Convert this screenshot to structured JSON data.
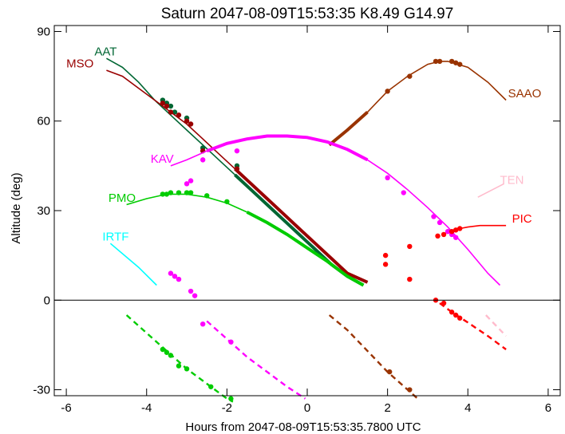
{
  "chart_data": {
    "type": "line",
    "title": "Saturn 2047-08-09T15:53:35  K8.49  G14.97",
    "xlabel": "Hours from 2047-08-09T15:53:35.7800 UTC",
    "ylabel": "Altitude (deg)",
    "xlim": [
      -6.3,
      6.3
    ],
    "ylim": [
      -32,
      92
    ],
    "xticks": [
      -6,
      -4,
      -2,
      0,
      2,
      4,
      6
    ],
    "yticks": [
      -30,
      0,
      30,
      60,
      90
    ],
    "zero_line": true,
    "series": [
      {
        "name": "AAT",
        "color": "#006633",
        "label_pos": [
          -5.3,
          82
        ],
        "x": [
          -5.0,
          -4.6,
          -4.2,
          -3.8,
          -3.4,
          -3.0,
          -2.6,
          -2.2,
          -1.8,
          -1.4,
          -1.0,
          -0.6,
          -0.2,
          0.2,
          0.6,
          1.0,
          1.4
        ],
        "y": [
          81,
          78,
          73,
          67,
          62,
          57,
          52,
          47,
          42,
          37,
          32,
          27,
          22,
          17,
          12,
          8,
          5
        ],
        "thick_from": -1.8,
        "dots": [
          [
            -3.6,
            67
          ],
          [
            -3.5,
            66
          ],
          [
            -3.4,
            65
          ],
          [
            -3.3,
            63
          ],
          [
            -3.0,
            61
          ],
          [
            -2.6,
            51
          ],
          [
            -1.75,
            45
          ]
        ],
        "below": {
          "x": [],
          "y": [],
          "dots": []
        }
      },
      {
        "name": "MSO",
        "color": "#990000",
        "label_pos": [
          -6.0,
          78
        ],
        "x": [
          -5.0,
          -4.6,
          -4.2,
          -3.8,
          -3.4,
          -3.0,
          -2.6,
          -2.2,
          -1.8,
          -1.4,
          -1.0,
          -0.6,
          -0.2,
          0.2,
          0.6,
          1.0,
          1.5
        ],
        "y": [
          77,
          75,
          71,
          67,
          63,
          59,
          54,
          49,
          44,
          39,
          34,
          29,
          24,
          19,
          14,
          9,
          6
        ],
        "thick_from": -1.8,
        "dots": [
          [
            -3.6,
            66
          ],
          [
            -3.5,
            65
          ],
          [
            -3.4,
            63
          ],
          [
            -3.2,
            62
          ],
          [
            -3.0,
            60
          ],
          [
            -2.9,
            59
          ],
          [
            -2.6,
            50
          ],
          [
            -1.75,
            44
          ]
        ],
        "below": {
          "x": [],
          "y": [],
          "dots": []
        }
      },
      {
        "name": "SAAO",
        "color": "#993300",
        "label_pos": [
          5.0,
          68
        ],
        "x": [
          0.55,
          1.0,
          1.5,
          2.0,
          2.5,
          3.0,
          3.3,
          3.5,
          4.0,
          4.5,
          4.95
        ],
        "y": [
          52,
          57,
          63,
          70,
          75,
          79,
          80,
          80,
          78,
          73,
          67
        ],
        "thick_until": 1.5,
        "dots": [
          [
            2.0,
            70
          ],
          [
            2.55,
            75
          ],
          [
            3.2,
            80
          ],
          [
            3.3,
            80
          ],
          [
            3.6,
            80
          ],
          [
            3.7,
            79.5
          ],
          [
            3.8,
            79
          ]
        ],
        "below": {
          "x": [
            0.55,
            1.0,
            1.5,
            2.0,
            2.5,
            2.75
          ],
          "y": [
            -5,
            -10,
            -17,
            -24,
            -30,
            -33
          ],
          "dots": [
            [
              2.05,
              -24
            ],
            [
              2.55,
              -30
            ]
          ]
        }
      },
      {
        "name": "KAV",
        "color": "#ff00ff",
        "label_pos": [
          -3.9,
          46
        ],
        "x": [
          -3.4,
          -3.0,
          -2.5,
          -2.0,
          -1.5,
          -1.0,
          -0.5,
          0.0,
          0.5,
          1.0,
          1.5,
          2.0,
          2.5,
          3.0,
          3.5,
          4.0,
          4.5,
          4.8
        ],
        "y": [
          45,
          47,
          50,
          52.5,
          54,
          55,
          55,
          54.5,
          53,
          50.5,
          47,
          42.5,
          37,
          31,
          24.5,
          17,
          9,
          5
        ],
        "thick_from": -2.6,
        "thick_until": 1.5,
        "dots": [
          [
            -2.6,
            47
          ],
          [
            -1.75,
            50
          ],
          [
            2.0,
            41
          ],
          [
            2.4,
            36
          ],
          [
            3.15,
            28
          ],
          [
            3.3,
            26
          ],
          [
            3.5,
            23
          ],
          [
            3.6,
            22
          ],
          [
            3.7,
            21
          ]
        ],
        "extra_dots": [
          [
            -2.9,
            40
          ],
          [
            -3.0,
            39
          ],
          [
            -3.4,
            9
          ],
          [
            -3.3,
            8
          ],
          [
            -3.2,
            7
          ],
          [
            -2.9,
            3
          ],
          [
            -2.8,
            1.5
          ]
        ],
        "below": {
          "x": [
            -2.5,
            -2.0,
            -1.5,
            -1.0,
            -0.5,
            -0.05
          ],
          "y": [
            -7,
            -13,
            -19,
            -24,
            -29,
            -33
          ],
          "dots": [
            [
              -2.6,
              -8
            ],
            [
              -1.9,
              -14
            ]
          ]
        }
      },
      {
        "name": "PMO",
        "color": "#00cc00",
        "label_pos": [
          -4.95,
          33
        ],
        "x": [
          -4.5,
          -4.0,
          -3.5,
          -3.0,
          -2.5,
          -2.0,
          -1.5,
          -1.0,
          -0.5,
          0.0,
          0.5,
          1.0,
          1.4
        ],
        "y": [
          32,
          34,
          35.5,
          35.5,
          34.5,
          32.5,
          29.5,
          26,
          22,
          17.5,
          13,
          8,
          5
        ],
        "thick_from": -1.8,
        "dots": [
          [
            -3.6,
            35.5
          ],
          [
            -3.5,
            35.5
          ],
          [
            -3.4,
            36
          ],
          [
            -3.2,
            36
          ],
          [
            -3.0,
            36
          ],
          [
            -2.9,
            36
          ],
          [
            -2.5,
            35
          ],
          [
            -2.0,
            33
          ]
        ],
        "below": {
          "x": [
            -4.5,
            -4.0,
            -3.5,
            -3.0,
            -2.5,
            -2.0,
            -1.85
          ],
          "y": [
            -5,
            -11,
            -17,
            -23,
            -28,
            -33,
            -34
          ],
          "dots": [
            [
              -3.6,
              -16.5
            ],
            [
              -3.5,
              -17.5
            ],
            [
              -3.4,
              -18.5
            ],
            [
              -3.2,
              -22
            ],
            [
              -3.0,
              -23
            ],
            [
              -2.4,
              -29
            ],
            [
              -1.9,
              -33
            ]
          ]
        }
      },
      {
        "name": "IRTF",
        "color": "#00ffff",
        "label_pos": [
          -5.1,
          20
        ],
        "x": [
          -4.9,
          -4.2,
          -3.75
        ],
        "y": [
          19,
          11,
          5
        ],
        "dots": [],
        "below": {
          "x": [],
          "y": [],
          "dots": []
        }
      },
      {
        "name": "TEN",
        "color": "#ffbbcc",
        "label_pos": [
          4.8,
          39
        ],
        "x": [
          4.25,
          4.9
        ],
        "y": [
          34.5,
          39
        ],
        "dots": [],
        "below": {
          "x": [
            4.45,
            4.95
          ],
          "y": [
            -5,
            -12
          ],
          "dots": []
        }
      },
      {
        "name": "PIC",
        "color": "#ff0000",
        "label_pos": [
          5.1,
          26
        ],
        "x": [
          3.8,
          4.0,
          4.3,
          4.6,
          4.95
        ],
        "y": [
          24,
          24.5,
          25,
          25,
          25
        ],
        "dots": [
          [
            3.25,
            21.5
          ],
          [
            3.4,
            22
          ],
          [
            3.6,
            23
          ],
          [
            3.7,
            23.5
          ],
          [
            3.8,
            24
          ]
        ],
        "extra_dots": [
          [
            1.95,
            15
          ],
          [
            1.95,
            12
          ],
          [
            2.55,
            18
          ],
          [
            2.55,
            7
          ],
          [
            3.2,
            0
          ]
        ],
        "below": {
          "x": [
            3.3,
            3.6,
            4.0,
            4.5,
            4.95
          ],
          "y": [
            -1,
            -4,
            -7.5,
            -12,
            -16.5
          ],
          "dots": [
            [
              3.4,
              -1
            ],
            [
              3.6,
              -4
            ],
            [
              3.7,
              -5
            ],
            [
              3.8,
              -6
            ]
          ]
        }
      }
    ]
  }
}
